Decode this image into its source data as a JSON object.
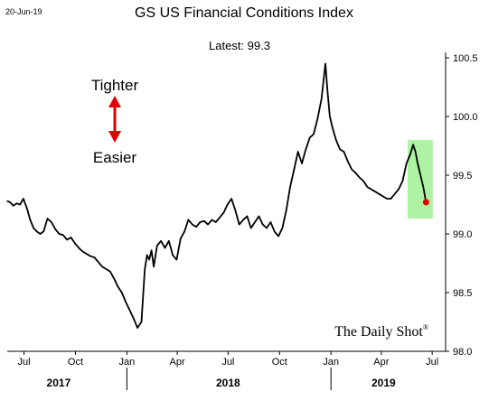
{
  "date_stamp": "20-Jun-19",
  "annotations": {
    "tighter": "Tighter",
    "easier": "Easier",
    "watermark": "The Daily Shot",
    "watermark_mark": "®",
    "arrow_color": "#e00000",
    "highlight_color": "#aef2a4",
    "latest_dot_color": "#e00000"
  },
  "chart_data": {
    "type": "line",
    "title": "GS US Financial Conditions Index",
    "subtitle": "Latest:  99.3",
    "latest": 99.3,
    "xlabel": "",
    "ylabel": "",
    "y_axis_side": "right",
    "ylim": [
      98.0,
      100.5
    ],
    "yticks": [
      98.0,
      98.5,
      99.0,
      99.5,
      100.0,
      100.5
    ],
    "ytick_labels": [
      "98.0",
      "98.5",
      "99.0",
      "99.5",
      "100.0",
      "100.5"
    ],
    "xlim": [
      "2017-06-01",
      "2019-07-25"
    ],
    "xticks": [
      {
        "date": "2017-07-01",
        "label": "Jul"
      },
      {
        "date": "2017-10-01",
        "label": "Oct"
      },
      {
        "date": "2018-01-01",
        "label": "Jan"
      },
      {
        "date": "2018-04-01",
        "label": "Apr"
      },
      {
        "date": "2018-07-01",
        "label": "Jul"
      },
      {
        "date": "2018-10-01",
        "label": "Oct"
      },
      {
        "date": "2019-01-01",
        "label": "Jan"
      },
      {
        "date": "2019-04-01",
        "label": "Apr"
      },
      {
        "date": "2019-07-01",
        "label": "Jul"
      }
    ],
    "year_labels": [
      {
        "label": "2017",
        "center": "2017-09-01"
      },
      {
        "label": "2018",
        "center": "2018-07-01"
      },
      {
        "label": "2019",
        "center": "2019-04-05"
      }
    ],
    "year_dividers": [
      "2018-01-01",
      "2019-01-01"
    ],
    "highlight_range": {
      "x": [
        "2019-05-18",
        "2019-07-02"
      ],
      "y": [
        99.13,
        99.8
      ]
    },
    "grid": false,
    "series": [
      {
        "x": [
          "2017-06-01",
          "2017-06-06",
          "2017-06-12",
          "2017-06-18",
          "2017-06-24",
          "2017-06-30",
          "2017-07-06",
          "2017-07-12",
          "2017-07-18",
          "2017-07-24",
          "2017-07-30",
          "2017-08-05",
          "2017-08-12",
          "2017-08-19",
          "2017-08-26",
          "2017-09-02",
          "2017-09-09",
          "2017-09-16",
          "2017-09-23",
          "2017-09-30",
          "2017-10-07",
          "2017-10-14",
          "2017-10-21",
          "2017-10-28",
          "2017-11-04",
          "2017-11-11",
          "2017-11-18",
          "2017-11-25",
          "2017-12-02",
          "2017-12-09",
          "2017-12-16",
          "2017-12-23",
          "2017-12-30",
          "2018-01-06",
          "2018-01-13",
          "2018-01-20",
          "2018-01-27",
          "2018-02-02",
          "2018-02-06",
          "2018-02-10",
          "2018-02-14",
          "2018-02-18",
          "2018-02-24",
          "2018-03-03",
          "2018-03-10",
          "2018-03-17",
          "2018-03-24",
          "2018-03-31",
          "2018-04-07",
          "2018-04-14",
          "2018-04-21",
          "2018-04-28",
          "2018-05-05",
          "2018-05-12",
          "2018-05-19",
          "2018-05-26",
          "2018-06-02",
          "2018-06-09",
          "2018-06-16",
          "2018-06-23",
          "2018-06-30",
          "2018-07-07",
          "2018-07-14",
          "2018-07-21",
          "2018-07-28",
          "2018-08-04",
          "2018-08-11",
          "2018-08-18",
          "2018-08-25",
          "2018-09-01",
          "2018-09-08",
          "2018-09-15",
          "2018-09-22",
          "2018-09-29",
          "2018-10-06",
          "2018-10-13",
          "2018-10-20",
          "2018-10-27",
          "2018-11-03",
          "2018-11-10",
          "2018-11-17",
          "2018-11-24",
          "2018-12-01",
          "2018-12-08",
          "2018-12-15",
          "2018-12-22",
          "2018-12-26",
          "2018-12-30",
          "2019-01-04",
          "2019-01-10",
          "2019-01-17",
          "2019-01-24",
          "2019-01-31",
          "2019-02-07",
          "2019-02-14",
          "2019-02-21",
          "2019-02-28",
          "2019-03-07",
          "2019-03-14",
          "2019-03-21",
          "2019-03-28",
          "2019-04-04",
          "2019-04-11",
          "2019-04-18",
          "2019-04-25",
          "2019-05-02",
          "2019-05-09",
          "2019-05-16",
          "2019-05-23",
          "2019-05-28",
          "2019-06-01",
          "2019-06-05",
          "2019-06-10",
          "2019-06-15",
          "2019-06-20"
        ],
        "values": [
          99.28,
          99.27,
          99.24,
          99.26,
          99.25,
          99.3,
          99.22,
          99.12,
          99.05,
          99.02,
          99.0,
          99.02,
          99.13,
          99.1,
          99.04,
          99.0,
          98.99,
          98.95,
          98.97,
          98.92,
          98.88,
          98.85,
          98.83,
          98.81,
          98.8,
          98.76,
          98.72,
          98.7,
          98.68,
          98.62,
          98.55,
          98.5,
          98.42,
          98.35,
          98.28,
          98.2,
          98.25,
          98.7,
          98.82,
          98.78,
          98.86,
          98.72,
          98.9,
          98.94,
          98.88,
          98.94,
          98.82,
          98.78,
          98.96,
          99.02,
          99.12,
          99.08,
          99.06,
          99.1,
          99.11,
          99.08,
          99.12,
          99.1,
          99.14,
          99.18,
          99.25,
          99.3,
          99.2,
          99.08,
          99.12,
          99.15,
          99.05,
          99.1,
          99.15,
          99.08,
          99.05,
          99.1,
          99.02,
          98.98,
          99.05,
          99.2,
          99.4,
          99.55,
          99.7,
          99.6,
          99.72,
          99.82,
          99.85,
          99.98,
          100.15,
          100.45,
          100.2,
          100.0,
          99.9,
          99.8,
          99.72,
          99.7,
          99.62,
          99.55,
          99.52,
          99.48,
          99.45,
          99.4,
          99.38,
          99.36,
          99.34,
          99.32,
          99.3,
          99.3,
          99.34,
          99.38,
          99.45,
          99.6,
          99.68,
          99.76,
          99.7,
          99.6,
          99.5,
          99.4,
          99.27
        ]
      }
    ]
  }
}
